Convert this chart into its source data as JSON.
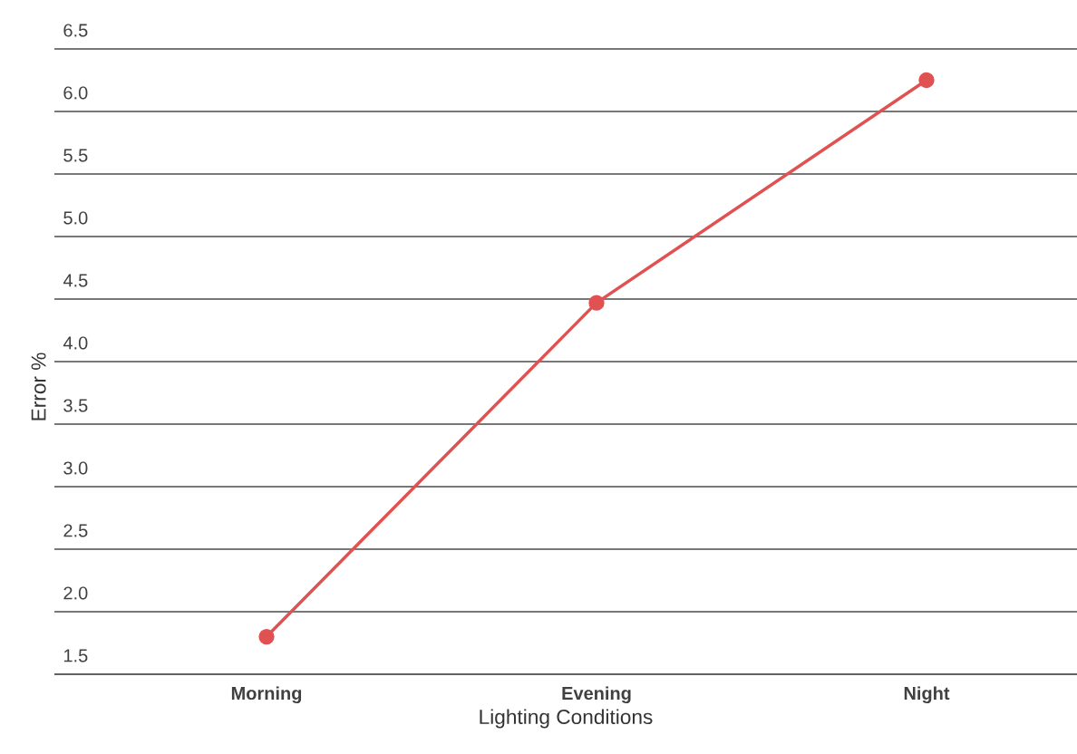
{
  "chart_data": {
    "type": "line",
    "xlabel": "Lighting Conditions",
    "ylabel": "Error %",
    "categories": [
      "Morning",
      "Evening",
      "Night"
    ],
    "series": [
      {
        "color": "#e05252",
        "values": [
          1.8,
          4.47,
          6.25
        ]
      }
    ],
    "ylim": [
      1.5,
      6.5
    ],
    "yticks": [
      {
        "value": 1.5,
        "label": "1.5"
      },
      {
        "value": 2,
        "label": "2.0"
      },
      {
        "value": 2.5,
        "label": "2.5"
      },
      {
        "value": 3,
        "label": "3.0"
      },
      {
        "value": 3.5,
        "label": "3.5"
      },
      {
        "value": 4,
        "label": "4.0"
      },
      {
        "value": 4.5,
        "label": "4.5"
      },
      {
        "value": 5,
        "label": "5.0"
      },
      {
        "value": 5.5,
        "label": "5.5"
      },
      {
        "value": 6,
        "label": "6.0"
      },
      {
        "value": 6.5,
        "label": "6.5"
      }
    ],
    "grid": "y",
    "marker": "circle",
    "line_style": "solid"
  }
}
